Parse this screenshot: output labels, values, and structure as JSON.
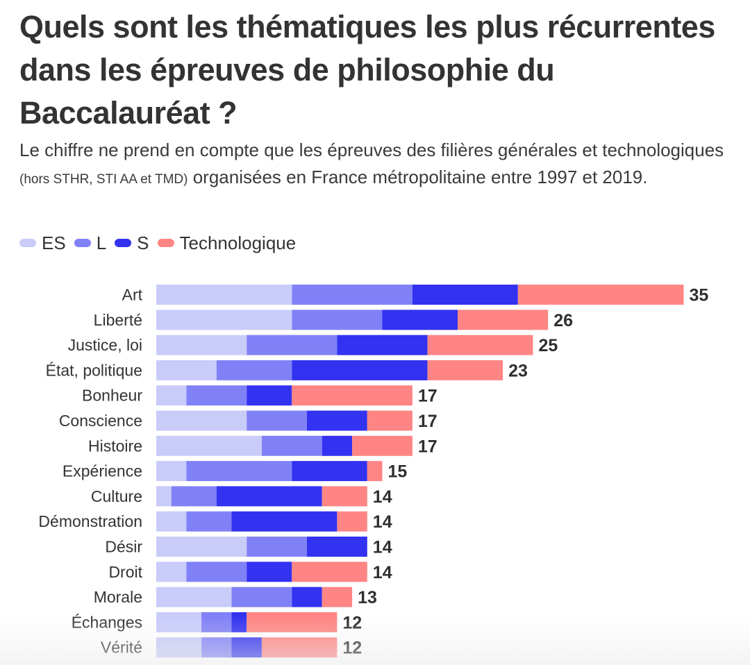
{
  "title": "Quels sont les thématiques les plus récurrentes dans les épreuves de philosophie du Baccalauréat ?",
  "subtitle": {
    "part1": "Le chiffre ne prend en compte que les épreuves des filières générales et technologiques",
    "part2": "(hors STHR, STI AA et TMD)",
    "part3": "organisées en France métropolitaine entre 1997 et 2019."
  },
  "legend": [
    {
      "label": "ES",
      "color": "#c9ccf9"
    },
    {
      "label": "L",
      "color": "#8181f7"
    },
    {
      "label": "S",
      "color": "#3232f0"
    },
    {
      "label": "Technologique",
      "color": "#ff8585"
    }
  ],
  "chart_data": {
    "type": "bar",
    "orientation": "horizontal",
    "stacked": true,
    "categories": [
      "Art",
      "Liberté",
      "Justice, loi",
      "État, politique",
      "Bonheur",
      "Conscience",
      "Histoire",
      "Expérience",
      "Culture",
      "Démonstration",
      "Désir",
      "Droit",
      "Morale",
      "Échanges",
      "Vérité"
    ],
    "series": [
      {
        "name": "ES",
        "color": "#c9ccf9",
        "values": [
          9,
          9,
          6,
          4,
          2,
          6,
          7,
          2,
          1,
          2,
          6,
          2,
          5,
          3,
          3
        ]
      },
      {
        "name": "L",
        "color": "#8181f7",
        "values": [
          8,
          6,
          6,
          5,
          4,
          4,
          4,
          7,
          3,
          3,
          4,
          4,
          4,
          2,
          2
        ]
      },
      {
        "name": "S",
        "color": "#3232f0",
        "values": [
          7,
          5,
          6,
          9,
          3,
          4,
          2,
          5,
          7,
          7,
          4,
          3,
          2,
          1,
          2
        ]
      },
      {
        "name": "Technologique",
        "color": "#ff8585",
        "values": [
          11,
          6,
          7,
          5,
          8,
          3,
          4,
          1,
          3,
          2,
          0,
          5,
          2,
          6,
          5
        ]
      }
    ],
    "totals": [
      35,
      26,
      25,
      23,
      17,
      17,
      17,
      15,
      14,
      14,
      14,
      14,
      13,
      12,
      12
    ],
    "xlim": [
      0,
      35
    ],
    "grid": false,
    "legend_position": "top-left"
  }
}
